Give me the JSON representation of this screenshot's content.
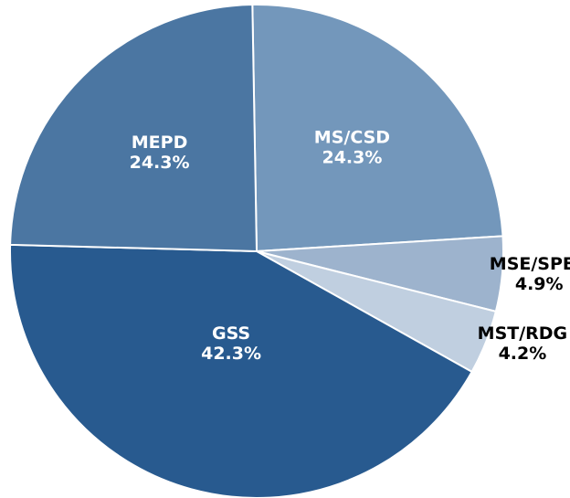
{
  "chart_data": {
    "type": "pie",
    "categories": [
      "MS/CSD",
      "MSE/SPED",
      "MST/RDG",
      "GSS",
      "MEPD"
    ],
    "values": [
      24.3,
      4.9,
      4.2,
      42.3,
      24.3
    ],
    "value_labels": [
      "24.3%",
      "4.9%",
      "4.2%",
      "42.3%",
      "24.3%"
    ],
    "colors": [
      "#7397bb",
      "#9db3cd",
      "#c0cfe0",
      "#285a8f",
      "#4b76a2"
    ]
  }
}
